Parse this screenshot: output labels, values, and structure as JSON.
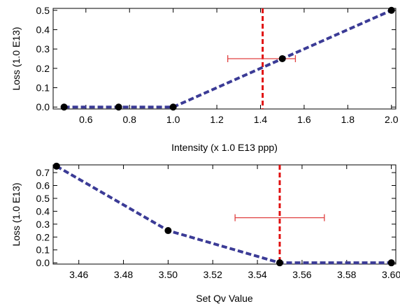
{
  "chart_data": [
    {
      "type": "line",
      "xlabel": "Intensity (x 1.0 E13 ppp)",
      "ylabel": "Loss (1.0 E13)",
      "xlim": [
        0.45,
        2.02
      ],
      "ylim": [
        -0.01,
        0.51
      ],
      "x_ticks": [
        "0.6",
        "0.8",
        "1.0",
        "1.2",
        "1.4",
        "1.6",
        "1.8",
        "2.0"
      ],
      "y_ticks": [
        "0.0",
        "0.1",
        "0.2",
        "0.3",
        "0.4",
        "0.5"
      ],
      "series": [
        {
          "x": [
            0.5,
            0.75,
            1.0,
            1.5,
            2.0
          ],
          "y": [
            0.0,
            0.0,
            0.0,
            0.25,
            0.5
          ]
        }
      ],
      "vline_x": 1.41,
      "error_point": {
        "x": 1.41,
        "y": 0.25,
        "xerr_low": 1.25,
        "xerr_high": 1.56
      },
      "colors": {
        "line": "#3b3b96",
        "vline": "#e01010",
        "errorbar": "#e04040",
        "points": "#000000"
      },
      "grid": false
    },
    {
      "type": "line",
      "xlabel": "Set Qv Value",
      "ylabel": "Loss (1.0 E13)",
      "xlim": [
        3.4485,
        3.602
      ],
      "ylim": [
        -0.01,
        0.76
      ],
      "x_ticks": [
        "3.46",
        "3.48",
        "3.50",
        "3.52",
        "3.54",
        "3.56",
        "3.58",
        "3.60"
      ],
      "y_ticks": [
        "0.0",
        "0.1",
        "0.2",
        "0.3",
        "0.4",
        "0.5",
        "0.6",
        "0.7"
      ],
      "series": [
        {
          "x": [
            3.45,
            3.5,
            3.55,
            3.6
          ],
          "y": [
            0.75,
            0.25,
            0.0,
            0.0
          ]
        }
      ],
      "vline_x": 3.55,
      "error_point": {
        "x": 3.55,
        "y": 0.35,
        "xerr_low": 3.53,
        "xerr_high": 3.57
      },
      "colors": {
        "line": "#3b3b96",
        "vline": "#e01010",
        "errorbar": "#e04040",
        "points": "#000000"
      },
      "grid": false
    }
  ]
}
